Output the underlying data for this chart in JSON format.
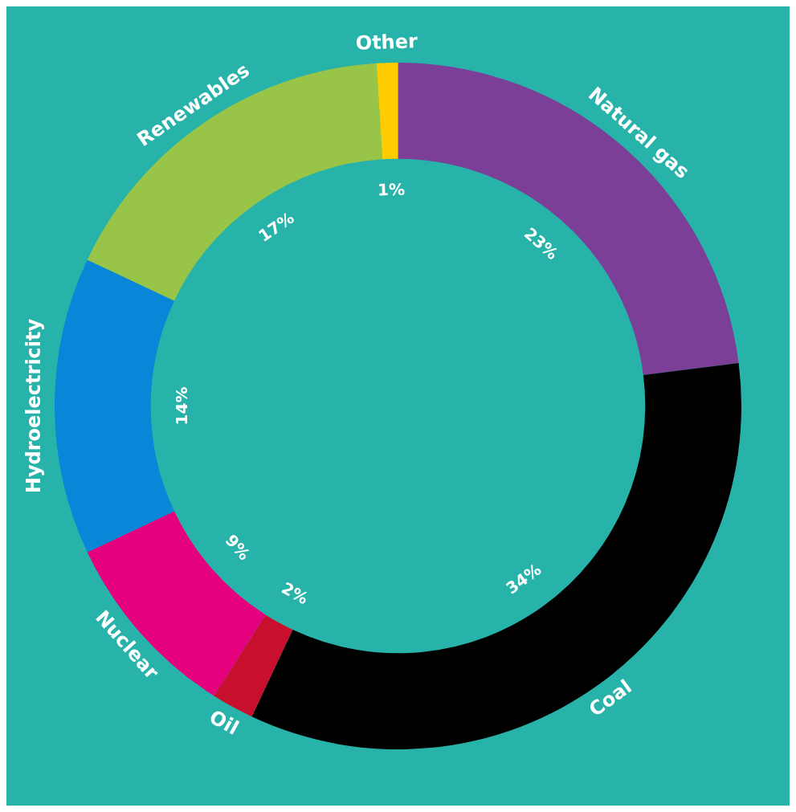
{
  "chart_data": {
    "type": "donut",
    "categories": [
      "Natural gas",
      "Coal",
      "Oil",
      "Nuclear",
      "Hydroelectricity",
      "Renewables",
      "Other"
    ],
    "values": [
      23,
      34,
      2,
      9,
      14,
      17,
      1
    ],
    "colors": [
      "#7b3f98",
      "#000000",
      "#c8102e",
      "#e5007e",
      "#0a86d8",
      "#98c447",
      "#ffcc00"
    ],
    "value_labels": [
      "23%",
      "34%",
      "2%",
      "9%",
      "14%",
      "17%",
      "1%"
    ],
    "legend": false
  }
}
